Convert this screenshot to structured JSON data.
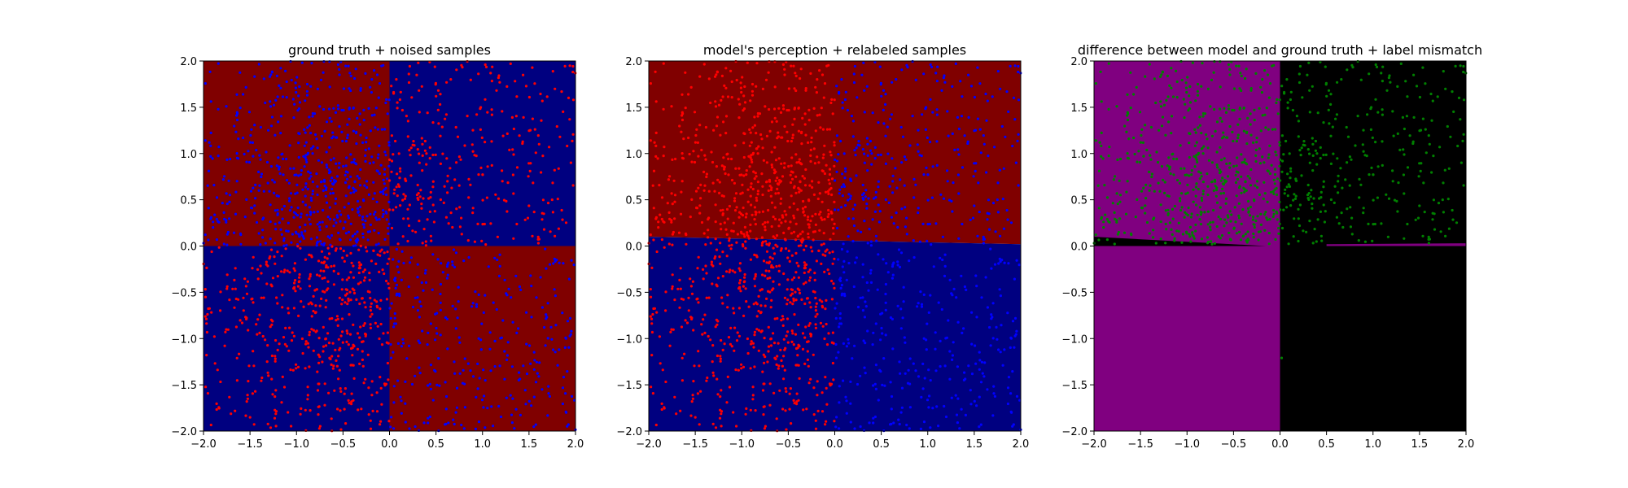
{
  "figure": {
    "background": "#ffffff"
  },
  "chart_data": [
    {
      "type": "scatter",
      "title": "ground truth + noised samples",
      "xlabel": "",
      "ylabel": "",
      "xlim": [
        -2.0,
        2.0
      ],
      "ylim": [
        -2.0,
        2.0
      ],
      "xticks": [
        "−2.0",
        "−1.5",
        "−1.0",
        "−0.5",
        "0.0",
        "0.5",
        "1.0",
        "1.5",
        "2.0"
      ],
      "yticks": [
        "−2.0",
        "−1.5",
        "−1.0",
        "−0.5",
        "0.0",
        "0.5",
        "1.0",
        "1.5",
        "2.0"
      ],
      "grid": false,
      "background_regions": [
        {
          "x": [
            -2.0,
            0.0
          ],
          "y": [
            0.0,
            2.0
          ],
          "color": "#800000"
        },
        {
          "x": [
            0.0,
            2.0
          ],
          "y": [
            0.0,
            2.0
          ],
          "color": "#000080"
        },
        {
          "x": [
            -2.0,
            0.0
          ],
          "y": [
            -2.0,
            0.0
          ],
          "color": "#000080"
        },
        {
          "x": [
            0.0,
            2.0
          ],
          "y": [
            -2.0,
            0.0
          ],
          "color": "#800000"
        }
      ],
      "point_color_rule": "blue in top-left and bottom-right quadrants, red in top-right and bottom-left quadrants",
      "point_colors": {
        "blue": "#0000ff",
        "red": "#ff0000"
      }
    },
    {
      "type": "scatter",
      "title": "model's perception + relabeled samples",
      "xlabel": "",
      "ylabel": "",
      "xlim": [
        -2.0,
        2.0
      ],
      "ylim": [
        -2.0,
        2.0
      ],
      "xticks": [
        "−2.0",
        "−1.5",
        "−1.0",
        "−0.5",
        "0.0",
        "0.5",
        "1.0",
        "1.5",
        "2.0"
      ],
      "yticks": [
        "−2.0",
        "−1.5",
        "−1.0",
        "−0.5",
        "0.0",
        "0.5",
        "1.0",
        "1.5",
        "2.0"
      ],
      "grid": false,
      "decision_boundary": {
        "x": [
          -2.0,
          2.0
        ],
        "y": [
          0.1,
          0.02
        ]
      },
      "background_regions": [
        {
          "region": "above boundary",
          "color": "#800000"
        },
        {
          "region": "below boundary",
          "color": "#000080"
        }
      ],
      "point_color_rule": "red for x < 0, blue for x > 0",
      "point_colors": {
        "blue": "#0000ff",
        "red": "#ff0000"
      }
    },
    {
      "type": "scatter",
      "title": "difference between model and ground truth + label mismatch",
      "xlabel": "",
      "ylabel": "",
      "xlim": [
        -2.0,
        2.0
      ],
      "ylim": [
        -2.0,
        2.0
      ],
      "xticks": [
        "−2.0",
        "−1.5",
        "−1.0",
        "−0.5",
        "0.0",
        "0.5",
        "1.0",
        "1.5",
        "2.0"
      ],
      "yticks": [
        "−2.0",
        "−1.5",
        "−1.0",
        "−0.5",
        "0.0",
        "0.5",
        "1.0",
        "1.5",
        "2.0"
      ],
      "grid": false,
      "background_regions": [
        {
          "x": [
            -2.0,
            0.0
          ],
          "y": [
            -2.0,
            2.0
          ],
          "color": "#800080"
        },
        {
          "x": [
            0.0,
            2.0
          ],
          "y": [
            -2.0,
            2.0
          ],
          "color": "#000000"
        }
      ],
      "boundary_slivers": [
        {
          "x": [
            -2.0,
            -0.15
          ],
          "y_top": [
            0.1,
            0.0
          ],
          "color": "#000000"
        },
        {
          "x": [
            0.5,
            2.0
          ],
          "y_top": [
            0.02,
            0.03
          ],
          "color": "#800080"
        }
      ],
      "point_region": "y > 0 (mismatched labels)",
      "point_colors": {
        "green": "#008000"
      }
    }
  ]
}
